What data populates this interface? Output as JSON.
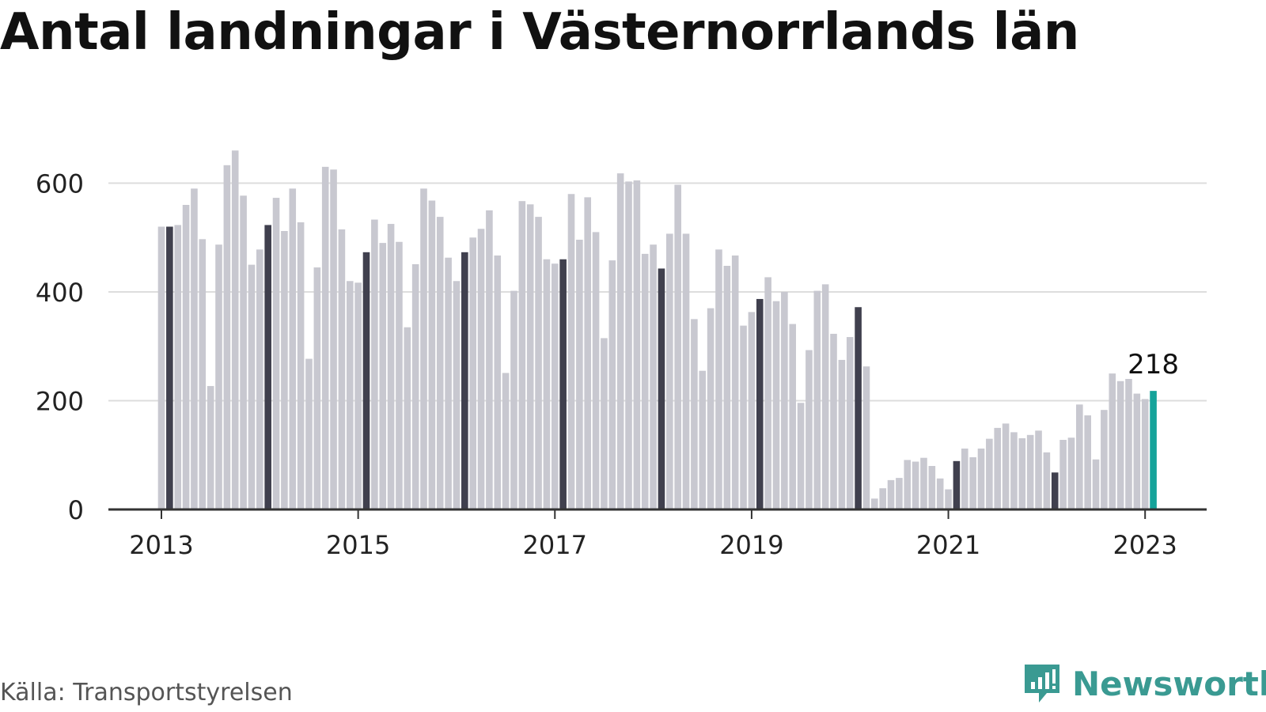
{
  "title": "Antal landningar i Västernorrlands län",
  "source": "Källa: Transportstyrelsen",
  "brand": {
    "name": "Newsworthy",
    "icon": "newsworthy-logo-icon",
    "color": "#3a9a92"
  },
  "colors": {
    "bar": "#c8c8d0",
    "bar_january": "#40404e",
    "bar_last": "#15a39a",
    "grid": "#dddddd",
    "axis": "#333333"
  },
  "chart_data": {
    "type": "bar",
    "title": "Antal landningar i Västernorrlands län",
    "xlabel": "",
    "ylabel": "",
    "x_start": "2013-01",
    "x_ticks": [
      "2013",
      "2015",
      "2017",
      "2019",
      "2021",
      "2023"
    ],
    "y_ticks": [
      "0",
      "200",
      "400",
      "600"
    ],
    "ylim": [
      0,
      660
    ],
    "grid": true,
    "annotation": {
      "label": "218",
      "value": 218
    },
    "values": [
      520,
      520,
      523,
      560,
      590,
      497,
      227,
      487,
      633,
      660,
      577,
      450,
      478,
      523,
      573,
      512,
      590,
      528,
      277,
      445,
      630,
      625,
      515,
      420,
      417,
      473,
      533,
      490,
      525,
      492,
      335,
      451,
      590,
      568,
      538,
      463,
      420,
      473,
      500,
      516,
      550,
      467,
      251,
      402,
      567,
      561,
      538,
      460,
      452,
      460,
      580,
      496,
      574,
      510,
      315,
      458,
      618,
      603,
      605,
      470,
      487,
      443,
      507,
      597,
      507,
      350,
      255,
      370,
      478,
      448,
      467,
      338,
      363,
      387,
      427,
      383,
      400,
      341,
      196,
      293,
      402,
      414,
      323,
      275,
      317,
      372,
      263,
      20,
      39,
      54,
      58,
      91,
      88,
      95,
      80,
      57,
      37,
      89,
      112,
      96,
      112,
      130,
      150,
      158,
      142,
      131,
      137,
      145,
      105,
      68,
      128,
      132,
      193,
      173,
      92,
      183,
      250,
      236,
      240,
      213,
      203,
      218
    ]
  }
}
